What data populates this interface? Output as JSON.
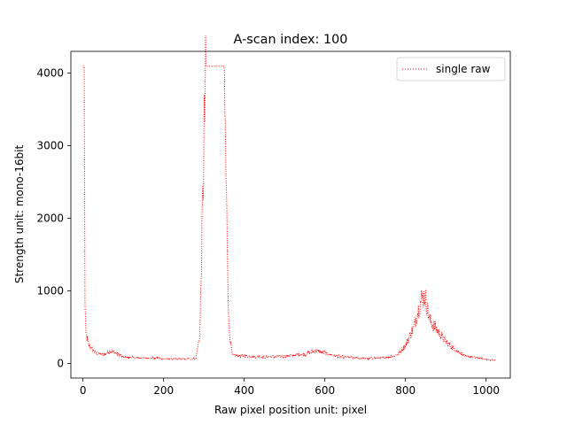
{
  "chart_data": {
    "type": "line",
    "title": "A-scan index: 100",
    "xlabel": "Raw pixel position unit: pixel",
    "ylabel": "Strength unit: mono-16bit",
    "xlim": [
      -30,
      1060
    ],
    "ylim": [
      -200,
      4300
    ],
    "xticks": [
      0,
      200,
      400,
      600,
      800,
      1000
    ],
    "yticks": [
      0,
      1000,
      2000,
      3000,
      4000
    ],
    "grid": false,
    "legend": "top-right",
    "series": [
      {
        "name": "single raw",
        "color": "#ff0000",
        "style": "dotted",
        "sampled_points": [
          [
            0,
            4095
          ],
          [
            3,
            4095
          ],
          [
            5,
            900
          ],
          [
            7,
            400
          ],
          [
            10,
            350
          ],
          [
            15,
            250
          ],
          [
            20,
            220
          ],
          [
            30,
            150
          ],
          [
            50,
            120
          ],
          [
            70,
            180
          ],
          [
            100,
            90
          ],
          [
            150,
            80
          ],
          [
            200,
            70
          ],
          [
            250,
            60
          ],
          [
            280,
            70
          ],
          [
            290,
            400
          ],
          [
            300,
            3000
          ],
          [
            305,
            4095
          ],
          [
            350,
            4095
          ],
          [
            355,
            2500
          ],
          [
            362,
            500
          ],
          [
            370,
            120
          ],
          [
            400,
            100
          ],
          [
            450,
            90
          ],
          [
            500,
            100
          ],
          [
            550,
            130
          ],
          [
            580,
            180
          ],
          [
            620,
            110
          ],
          [
            650,
            90
          ],
          [
            700,
            70
          ],
          [
            750,
            80
          ],
          [
            780,
            120
          ],
          [
            800,
            250
          ],
          [
            820,
            500
          ],
          [
            840,
            900
          ],
          [
            848,
            930
          ],
          [
            860,
            600
          ],
          [
            880,
            450
          ],
          [
            900,
            300
          ],
          [
            920,
            200
          ],
          [
            950,
            100
          ],
          [
            1000,
            60
          ],
          [
            1023,
            40
          ]
        ]
      }
    ]
  }
}
